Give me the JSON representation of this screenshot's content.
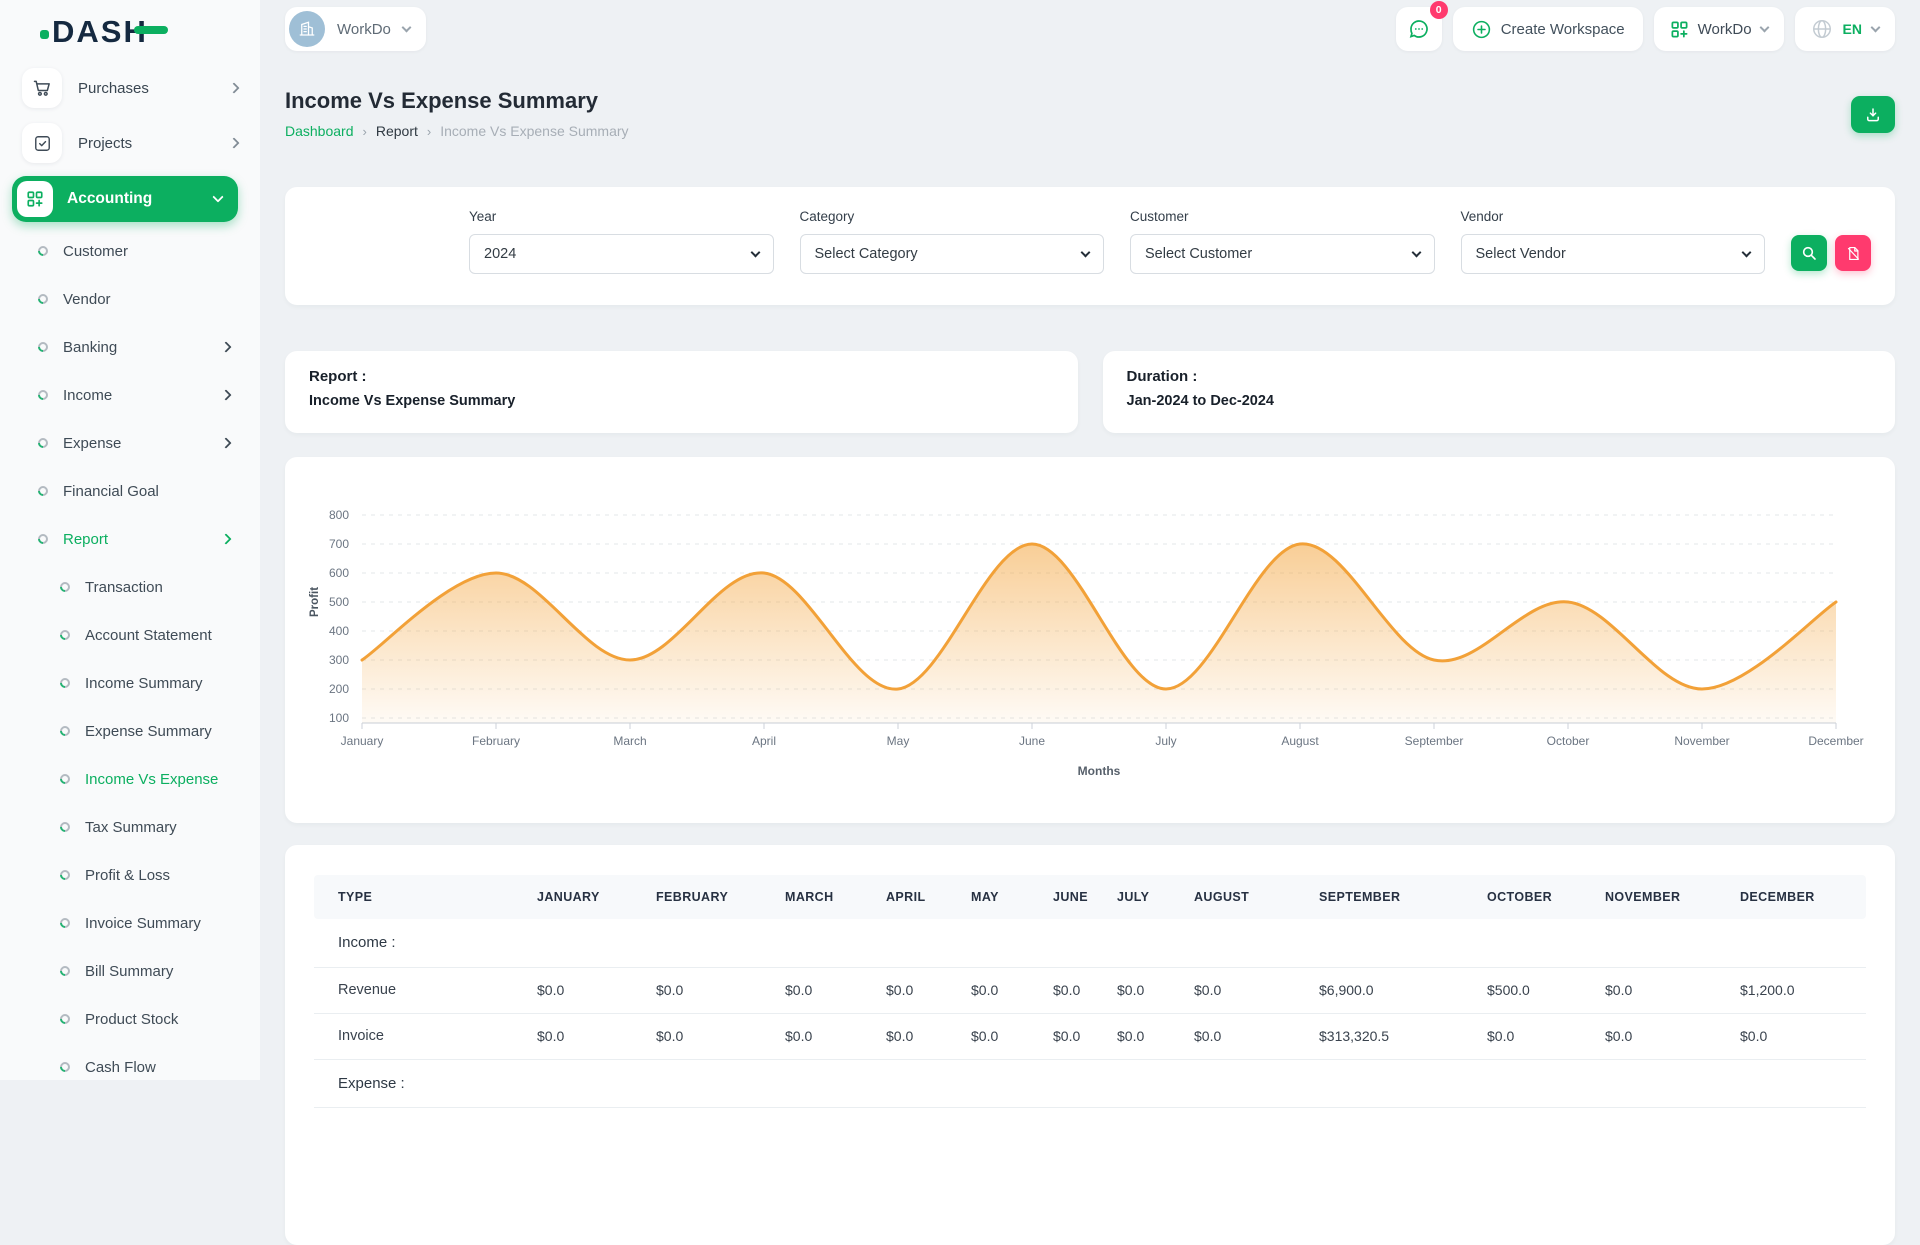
{
  "theme": {
    "green": "#0caf60",
    "pink": "#ff3a6e",
    "orange": "#f2a138",
    "navy": "#152940"
  },
  "brand": {
    "logo_text": "DASH"
  },
  "topbar": {
    "workspace_label": "WorkDo",
    "messages_badge": "0",
    "create_workspace_label": "Create Workspace",
    "workdo_label": "WorkDo",
    "language": "EN"
  },
  "sidebar": {
    "top_items": [
      {
        "label": "Purchases",
        "icon": "cart-icon"
      },
      {
        "label": "Projects",
        "icon": "tasks-icon"
      }
    ],
    "active_parent": {
      "label": "Accounting",
      "icon": "grid-plus-icon"
    },
    "menu": [
      {
        "label": "Customer",
        "indent": 1
      },
      {
        "label": "Vendor",
        "indent": 1
      },
      {
        "label": "Banking",
        "indent": 1,
        "chevron": true
      },
      {
        "label": "Income",
        "indent": 1,
        "chevron": true
      },
      {
        "label": "Expense",
        "indent": 1,
        "chevron": true
      },
      {
        "label": "Financial Goal",
        "indent": 1
      },
      {
        "label": "Report",
        "indent": 1,
        "chevron": true,
        "active": true
      },
      {
        "label": "Transaction",
        "indent": 2
      },
      {
        "label": "Account Statement",
        "indent": 2
      },
      {
        "label": "Income Summary",
        "indent": 2
      },
      {
        "label": "Expense Summary",
        "indent": 2
      },
      {
        "label": "Income Vs Expense",
        "indent": 2,
        "active": true
      },
      {
        "label": "Tax Summary",
        "indent": 2
      },
      {
        "label": "Profit & Loss",
        "indent": 2
      },
      {
        "label": "Invoice Summary",
        "indent": 2
      },
      {
        "label": "Bill Summary",
        "indent": 2
      },
      {
        "label": "Product Stock",
        "indent": 2
      },
      {
        "label": "Cash Flow",
        "indent": 2
      }
    ]
  },
  "page": {
    "title": "Income Vs Expense Summary",
    "breadcrumb": [
      "Dashboard",
      "Report",
      "Income Vs Expense Summary"
    ]
  },
  "filters": {
    "fields": [
      {
        "label": "Year",
        "value": "2024"
      },
      {
        "label": "Category",
        "value": "Select Category"
      },
      {
        "label": "Customer",
        "value": "Select Customer"
      },
      {
        "label": "Vendor",
        "value": "Select Vendor"
      }
    ]
  },
  "cards": {
    "report": {
      "title": "Report :",
      "value": "Income Vs Expense Summary"
    },
    "duration": {
      "title": "Duration :",
      "value": "Jan-2024 to Dec-2024"
    }
  },
  "chart_data": {
    "type": "area",
    "categories": [
      "January",
      "February",
      "March",
      "April",
      "May",
      "June",
      "July",
      "August",
      "September",
      "October",
      "November",
      "December"
    ],
    "series": [
      {
        "name": "Profit",
        "values": [
          300,
          600,
          300,
          600,
          200,
          700,
          200,
          700,
          300,
          500,
          200,
          500
        ]
      }
    ],
    "title": "",
    "xlabel": "Months",
    "ylabel": "Profit",
    "ylim": [
      100,
      800
    ],
    "ytick_step": 100,
    "grid": "dashed-horizontal",
    "legend": "none",
    "line_color": "#f2a138",
    "fill_color": "#f3a641"
  },
  "table": {
    "columns": [
      "TYPE",
      "JANUARY",
      "FEBRUARY",
      "MARCH",
      "APRIL",
      "MAY",
      "JUNE",
      "JULY",
      "AUGUST",
      "SEPTEMBER",
      "OCTOBER",
      "NOVEMBER",
      "DECEMBER"
    ],
    "rows": [
      {
        "kind": "group",
        "label": "Income :"
      },
      {
        "kind": "data",
        "label": "Revenue",
        "values": [
          "$0.0",
          "$0.0",
          "$0.0",
          "$0.0",
          "$0.0",
          "$0.0",
          "$0.0",
          "$0.0",
          "$6,900.0",
          "$500.0",
          "$0.0",
          "$1,200.0"
        ]
      },
      {
        "kind": "data",
        "label": "Invoice",
        "values": [
          "$0.0",
          "$0.0",
          "$0.0",
          "$0.0",
          "$0.0",
          "$0.0",
          "$0.0",
          "$0.0",
          "$313,320.5",
          "$0.0",
          "$0.0",
          "$0.0"
        ]
      },
      {
        "kind": "group",
        "label": "Expense :"
      }
    ]
  }
}
